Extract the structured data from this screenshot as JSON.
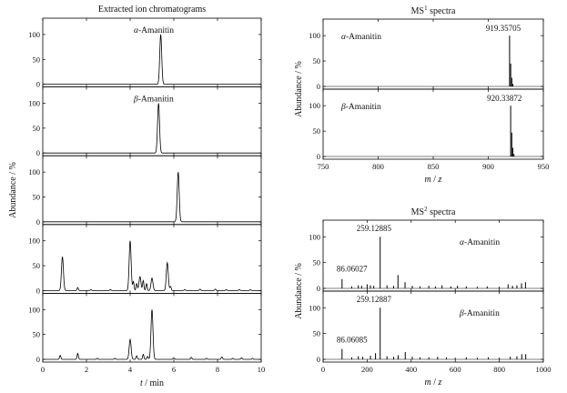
{
  "chart_data": [
    {
      "type": "line",
      "group": "left",
      "title": "Extracted ion chromatograms",
      "xlabel": "t / min",
      "ylabel": "Abundance / %",
      "xlim": [
        0,
        10
      ],
      "ylim": [
        0,
        120
      ],
      "x_ticks": [
        0,
        2,
        4,
        6,
        8,
        10
      ],
      "y_ticks": [
        0,
        50,
        100
      ],
      "panels": [
        {
          "label": "α-Amanitin",
          "label_prefix": "α",
          "label_rest": "-Amanitin",
          "peaks": [
            [
              5.4,
              100
            ]
          ],
          "noise": []
        },
        {
          "label": "β-Amanitin",
          "label_prefix": "β",
          "label_rest": "-Amanitin",
          "peaks": [
            [
              5.3,
              100
            ]
          ],
          "noise": []
        },
        {
          "label": "",
          "label_prefix": "",
          "label_rest": "",
          "peaks": [
            [
              6.2,
              100
            ]
          ],
          "noise": []
        },
        {
          "label": "",
          "label_prefix": "",
          "label_rest": "",
          "peaks": [
            [
              0.9,
              68
            ],
            [
              1.6,
              6
            ],
            [
              4.0,
              100
            ],
            [
              4.15,
              18
            ],
            [
              4.3,
              14
            ],
            [
              4.45,
              28
            ],
            [
              4.6,
              20
            ],
            [
              4.75,
              14
            ],
            [
              5.0,
              25
            ],
            [
              5.7,
              56
            ],
            [
              5.85,
              8
            ]
          ],
          "noise": [
            [
              2.2,
              2
            ],
            [
              3.1,
              2
            ],
            [
              6.5,
              2
            ],
            [
              7.2,
              3
            ],
            [
              7.9,
              3
            ],
            [
              8.4,
              2
            ],
            [
              9.0,
              2
            ],
            [
              9.5,
              2
            ]
          ]
        },
        {
          "label": "",
          "label_prefix": "",
          "label_rest": "",
          "peaks": [
            [
              0.8,
              8
            ],
            [
              1.6,
              12
            ],
            [
              4.0,
              40
            ],
            [
              4.3,
              7
            ],
            [
              4.6,
              10
            ],
            [
              4.8,
              6
            ],
            [
              5.0,
              100
            ],
            [
              6.8,
              4
            ],
            [
              8.2,
              5
            ],
            [
              9.1,
              3
            ]
          ],
          "noise": [
            [
              2.5,
              2
            ],
            [
              3.3,
              2
            ],
            [
              6.0,
              3
            ],
            [
              7.5,
              2
            ],
            [
              8.7,
              2
            ],
            [
              9.6,
              2
            ]
          ]
        }
      ]
    },
    {
      "type": "bar",
      "group": "right-top",
      "title_prefix": "MS",
      "title_sup": "1",
      "title_suffix": " spectra",
      "xlabel_m": "m",
      "xlabel_sep": " / ",
      "xlabel_z": "z",
      "ylabel": "Abundance / %",
      "xlim": [
        750,
        950
      ],
      "ylim": [
        0,
        120
      ],
      "x_ticks": [
        750,
        800,
        850,
        900,
        950
      ],
      "y_ticks": [
        0,
        50,
        100
      ],
      "panels": [
        {
          "label_prefix": "α",
          "label_rest": "-Amanitin",
          "peak_label": "919.35705",
          "peak_label_x": 919.36,
          "lines": [
            [
              919.36,
              100
            ],
            [
              920.36,
              45
            ],
            [
              921.36,
              17
            ],
            [
              922.36,
              5
            ]
          ]
        },
        {
          "label_prefix": "β",
          "label_rest": "-Amanitin",
          "peak_label": "920.33872",
          "peak_label_x": 920.34,
          "lines": [
            [
              920.34,
              100
            ],
            [
              921.34,
              47
            ],
            [
              922.34,
              17
            ],
            [
              923.34,
              5
            ]
          ]
        }
      ]
    },
    {
      "type": "bar",
      "group": "right-bottom",
      "title_prefix": "MS",
      "title_sup": "2",
      "title_suffix": " spectra",
      "xlabel_m": "m",
      "xlabel_sep": " / ",
      "xlabel_z": "z",
      "ylabel": "Abundance / %",
      "xlim": [
        0,
        1000
      ],
      "ylim": [
        0,
        120
      ],
      "x_ticks": [
        0,
        200,
        400,
        600,
        800,
        1000
      ],
      "y_ticks": [
        0,
        50,
        100
      ],
      "panels": [
        {
          "label_prefix": "α",
          "label_rest": "-Amanitin",
          "labels": [
            {
              "text": "259.12885",
              "x": 259.13
            },
            {
              "text": "86.06027",
              "x": 86.06
            }
          ],
          "lines": [
            [
              86.06,
              18
            ],
            [
              130,
              4
            ],
            [
              160,
              6
            ],
            [
              175,
              5
            ],
            [
              200,
              8
            ],
            [
              215,
              6
            ],
            [
              230,
              5
            ],
            [
              259.13,
              100
            ],
            [
              290,
              6
            ],
            [
              320,
              5
            ],
            [
              340,
              26
            ],
            [
              372,
              12
            ],
            [
              405,
              5
            ],
            [
              440,
              4
            ],
            [
              480,
              5
            ],
            [
              510,
              4
            ],
            [
              540,
              6
            ],
            [
              580,
              4
            ],
            [
              610,
              5
            ],
            [
              650,
              4
            ],
            [
              700,
              3
            ],
            [
              745,
              4
            ],
            [
              800,
              3
            ],
            [
              840,
              8
            ],
            [
              860,
              5
            ],
            [
              880,
              6
            ],
            [
              901,
              10
            ],
            [
              919,
              12
            ]
          ]
        },
        {
          "label_prefix": "β",
          "label_rest": "-Amanitin",
          "labels": [
            {
              "text": "259.12887",
              "x": 259.13
            },
            {
              "text": "86.06085",
              "x": 86.06
            }
          ],
          "lines": [
            [
              86.06,
              20
            ],
            [
              130,
              4
            ],
            [
              160,
              6
            ],
            [
              180,
              5
            ],
            [
              215,
              7
            ],
            [
              238,
              12
            ],
            [
              259.13,
              100
            ],
            [
              290,
              6
            ],
            [
              320,
              5
            ],
            [
              341,
              8
            ],
            [
              373,
              14
            ],
            [
              405,
              5
            ],
            [
              440,
              4
            ],
            [
              480,
              4
            ],
            [
              520,
              5
            ],
            [
              560,
              4
            ],
            [
              600,
              3
            ],
            [
              650,
              4
            ],
            [
              700,
              3
            ],
            [
              750,
              4
            ],
            [
              800,
              3
            ],
            [
              850,
              5
            ],
            [
              880,
              6
            ],
            [
              902,
              10
            ],
            [
              920,
              10
            ]
          ]
        }
      ]
    }
  ]
}
